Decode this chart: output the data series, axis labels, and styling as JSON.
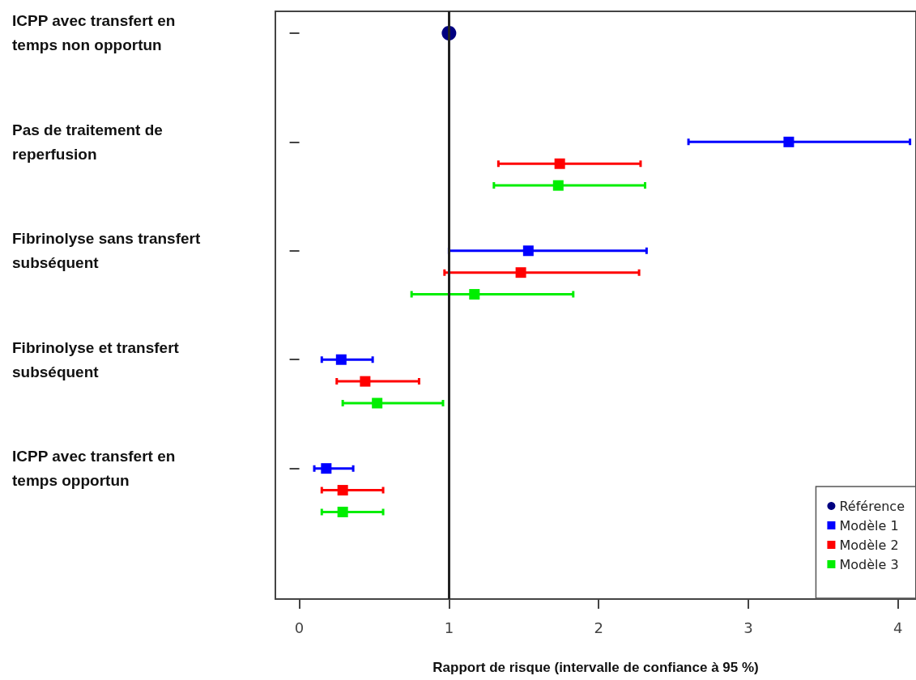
{
  "chart_data": {
    "type": "scatter",
    "orientation": "horizontal",
    "marker": "square",
    "xlabel": "Rapport de risque (intervalle de confiance à 95 %)",
    "categories": [
      "ICPP avec transfert en temps non opportun",
      "Pas de traitement de reperfusion",
      "Fibrinolyse sans transfert subséquent",
      "Fibrinolyse et transfert subséquent",
      "ICPP avec transfert en temps opportun"
    ],
    "series": [
      {
        "name": "Référence",
        "color": "#000080",
        "marker": "circle",
        "values": [
          1.0,
          null,
          null,
          null,
          null
        ]
      },
      {
        "name": "Modèle 1",
        "color": "#0000ff",
        "values": [
          null,
          3.27,
          1.53,
          0.28,
          0.18
        ],
        "errors": [
          null,
          [
            2.6,
            4.08
          ],
          [
            1.0,
            2.32
          ],
          [
            0.15,
            0.49
          ],
          [
            0.1,
            0.36
          ]
        ]
      },
      {
        "name": "Modèle 2",
        "color": "#ff0000",
        "values": [
          null,
          1.74,
          1.48,
          0.44,
          0.29
        ],
        "errors": [
          null,
          [
            1.33,
            2.28
          ],
          [
            0.97,
            2.27
          ],
          [
            0.25,
            0.8
          ],
          [
            0.15,
            0.56
          ]
        ]
      },
      {
        "name": "Modèle 3",
        "color": "#00ee00",
        "values": [
          null,
          1.73,
          1.17,
          0.52,
          0.29
        ],
        "errors": [
          null,
          [
            1.3,
            2.31
          ],
          [
            0.75,
            1.83
          ],
          [
            0.29,
            0.96
          ],
          [
            0.15,
            0.56
          ]
        ]
      }
    ],
    "xlim": [
      -0.16,
      4.12
    ],
    "xticks": [
      0,
      1,
      2,
      3,
      4
    ],
    "ref_lines": [
      {
        "axis": "x",
        "value": 1,
        "color": "#222222"
      }
    ],
    "grid": false,
    "legend": "bottom right"
  }
}
